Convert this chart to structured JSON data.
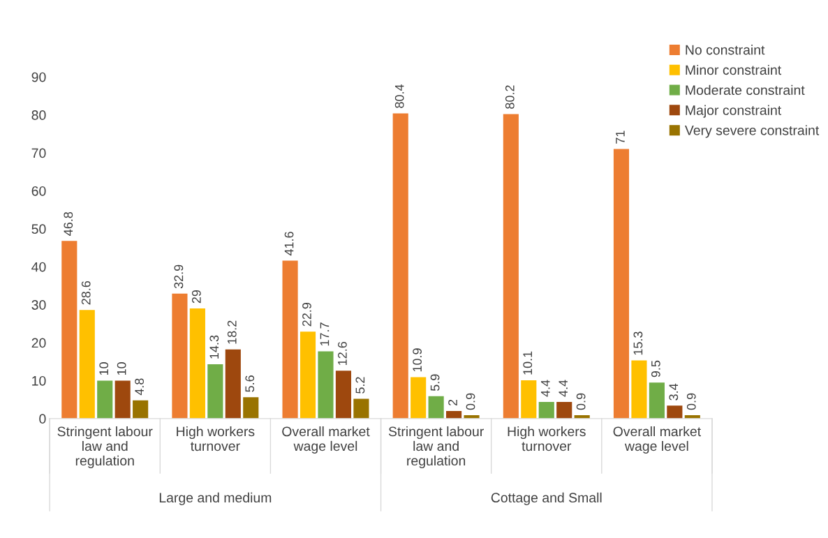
{
  "chart_data": {
    "type": "bar",
    "categories": [
      "Stringent labour\nlaw and\nregulation",
      "High workers\nturnover",
      "Overall market\nwage level",
      "Stringent labour\nlaw and\nregulation",
      "High workers\nturnover",
      "Overall market\nwage level"
    ],
    "series": [
      {
        "name": "No constraint",
        "color": "#ed7d31",
        "values": [
          46.8,
          32.9,
          41.6,
          80.4,
          80.2,
          71
        ]
      },
      {
        "name": "Minor constraint",
        "color": "#ffc000",
        "values": [
          28.6,
          29,
          22.9,
          10.9,
          10.1,
          15.3
        ]
      },
      {
        "name": "Moderate constraint",
        "color": "#70ad47",
        "values": [
          10,
          14.3,
          17.7,
          5.9,
          4.4,
          9.5
        ]
      },
      {
        "name": "Major constraint",
        "color": "#9e480e",
        "values": [
          10,
          18.2,
          12.6,
          2,
          4.4,
          3.4
        ]
      },
      {
        "name": "Very severe constraint",
        "color": "#997300",
        "values": [
          4.8,
          5.6,
          5.2,
          0.9,
          0.9,
          0.9
        ]
      }
    ],
    "annotations": [
      "Large and medium",
      "Cottage and Small"
    ],
    "ylim": [
      0,
      90
    ],
    "yticks": [
      0,
      10,
      20,
      30,
      40,
      50,
      60,
      70,
      80,
      90
    ],
    "grid": false,
    "legend": "top right",
    "data_labels": true
  }
}
